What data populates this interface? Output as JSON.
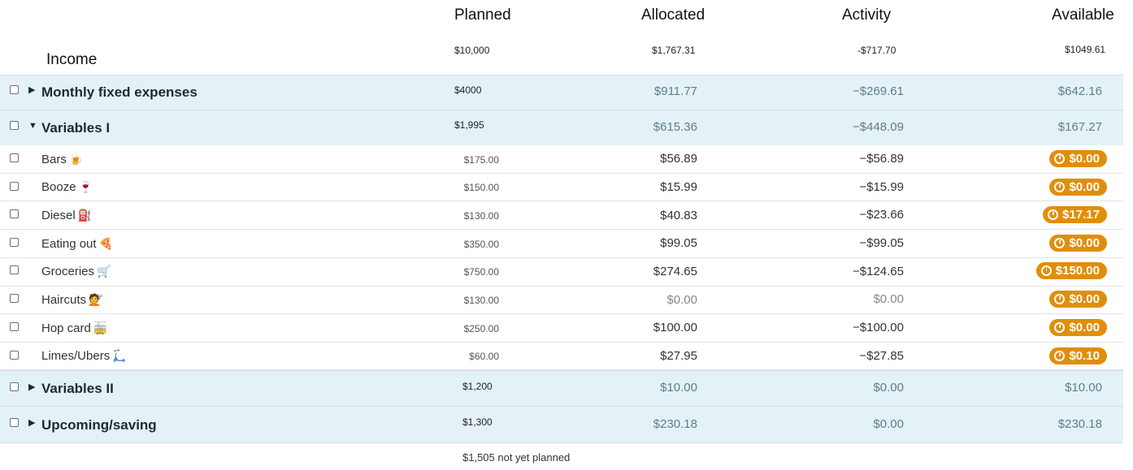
{
  "headers": {
    "planned": "Planned",
    "allocated": "Allocated",
    "activity": "Activity",
    "available": "Available"
  },
  "income": {
    "label": "Income",
    "planned": "$10,000",
    "allocated": "$1,767.31",
    "activity": "-$717.70",
    "available": "$1049.61"
  },
  "groups": [
    {
      "name": "Monthly fixed expenses",
      "expanded": false,
      "planned": "$4000",
      "allocated": "$911.77",
      "activity": "−$269.61",
      "available": "$642.16"
    },
    {
      "name": "Variables I",
      "expanded": true,
      "planned": "$1,995",
      "allocated": "$615.36",
      "activity": "−$448.09",
      "available": "$167.27"
    },
    {
      "name": "Variables II",
      "expanded": false,
      "planned": "$1,200",
      "allocated": "$10.00",
      "activity": "$0.00",
      "available": "$10.00"
    },
    {
      "name": "Upcoming/saving",
      "expanded": false,
      "planned": "$1,300",
      "allocated": "$230.18",
      "activity": "$0.00",
      "available": "$230.18"
    }
  ],
  "categories": [
    {
      "name": "Bars",
      "icon": "beer-mug-icon",
      "glyph": "🍺",
      "planned": "$175.00",
      "allocated": "$56.89",
      "activity": "−$56.89",
      "available": "$0.00"
    },
    {
      "name": "Booze",
      "icon": "wine-glass-icon",
      "glyph": "🍷",
      "planned": "$150.00",
      "allocated": "$15.99",
      "activity": "−$15.99",
      "available": "$0.00"
    },
    {
      "name": "Diesel",
      "icon": "fuel-pump-icon",
      "glyph": "⛽",
      "planned": "$130.00",
      "allocated": "$40.83",
      "activity": "−$23.66",
      "available": "$17.17"
    },
    {
      "name": "Eating out",
      "icon": "pizza-icon",
      "glyph": "🍕",
      "planned": "$350.00",
      "allocated": "$99.05",
      "activity": "−$99.05",
      "available": "$0.00"
    },
    {
      "name": "Groceries",
      "icon": "shopping-cart-icon",
      "glyph": "🛒",
      "planned": "$750.00",
      "allocated": "$274.65",
      "activity": "−$124.65",
      "available": "$150.00"
    },
    {
      "name": "Haircuts",
      "icon": "haircut-icon",
      "glyph": "💇",
      "planned": "$130.00",
      "allocated": "$0.00",
      "activity": "$0.00",
      "available": "$0.00"
    },
    {
      "name": "Hop card",
      "icon": "tram-icon",
      "glyph": "🚋",
      "planned": "$250.00",
      "allocated": "$100.00",
      "activity": "−$100.00",
      "available": "$0.00"
    },
    {
      "name": "Limes/Ubers",
      "icon": "scooter-icon",
      "glyph": "🛴",
      "planned": "$60.00",
      "allocated": "$27.95",
      "activity": "−$27.85",
      "available": "$0.10"
    }
  ],
  "footer": {
    "not_planned": "$1,505 not yet planned"
  },
  "colors": {
    "group_bg": "#e4f2f7",
    "pill": "#e08e0b",
    "group_value": "#5e7d88"
  }
}
